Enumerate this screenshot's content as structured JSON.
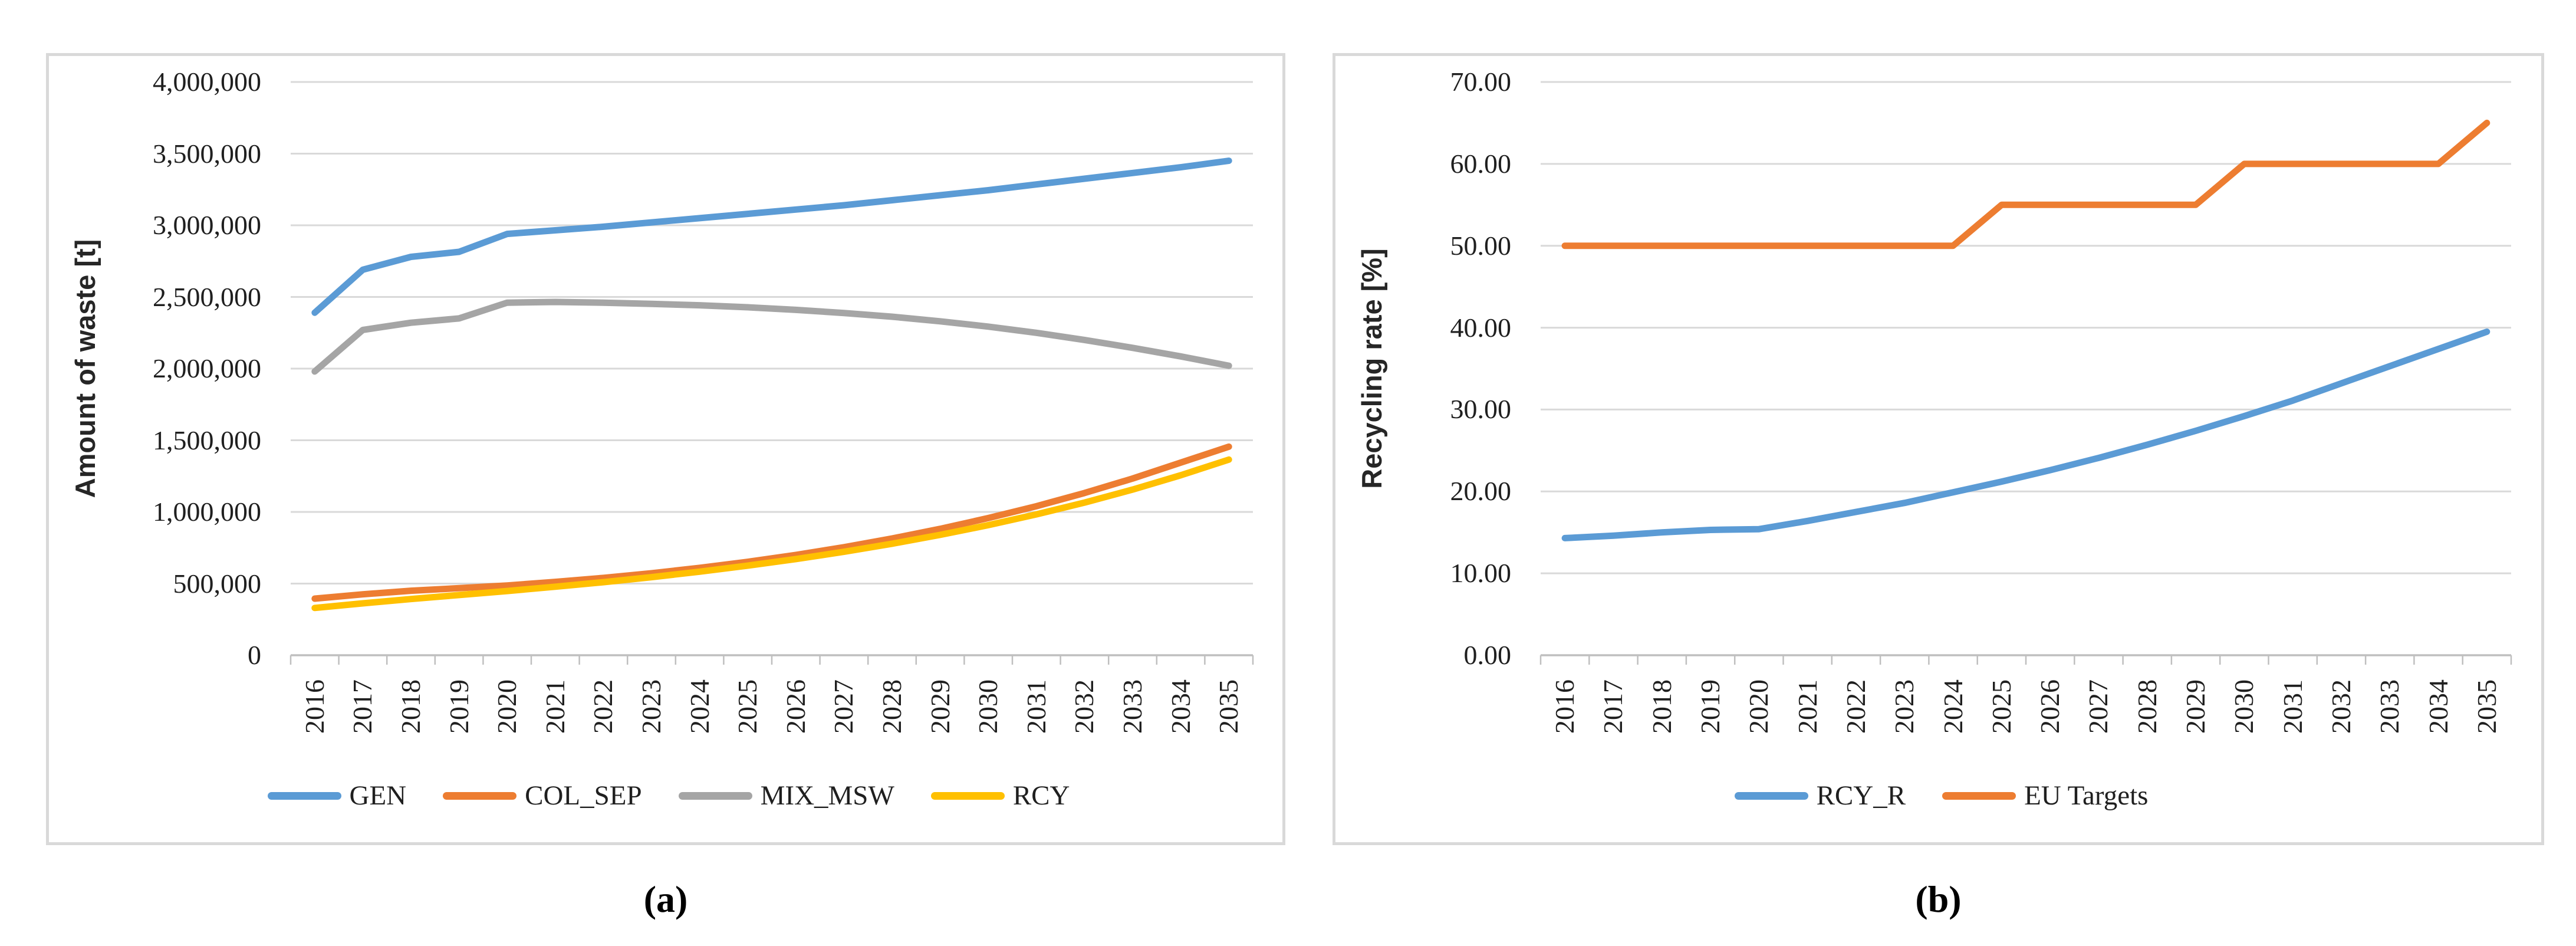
{
  "figure": {
    "captions": [
      "(a)",
      "(b)"
    ],
    "background_color": "#ffffff",
    "panel_border_color": "#d9d9d9",
    "gridline_color": "#d9d9d9",
    "axis_line_color": "#bfbfbf",
    "text_color": "#1f1f1f"
  },
  "chart_data": [
    {
      "id": "a",
      "type": "line",
      "title": "",
      "xlabel": "",
      "ylabel": "Amount of waste [t]",
      "caption": "(a)",
      "grid": true,
      "legend_position": "bottom",
      "ylim": [
        0,
        4000000
      ],
      "ytick_step": 500000,
      "ytick_labels": [
        "0",
        "500,000",
        "1,000,000",
        "1,500,000",
        "2,000,000",
        "2,500,000",
        "3,000,000",
        "3,500,000",
        "4,000,000"
      ],
      "categories": [
        "2016",
        "2017",
        "2018",
        "2019",
        "2020",
        "2021",
        "2022",
        "2023",
        "2024",
        "2025",
        "2026",
        "2027",
        "2028",
        "2029",
        "2030",
        "2031",
        "2032",
        "2033",
        "2034",
        "2035"
      ],
      "series": [
        {
          "name": "GEN",
          "color": "#5B9BD5",
          "values": [
            2390000,
            2690000,
            2780000,
            2815000,
            2940000,
            2965000,
            2990000,
            3020000,
            3050000,
            3080000,
            3110000,
            3140000,
            3175000,
            3210000,
            3245000,
            3285000,
            3325000,
            3365000,
            3405000,
            3450000
          ]
        },
        {
          "name": "COL_SEP",
          "color": "#ED7D31",
          "values": [
            395000,
            425000,
            450000,
            468000,
            487000,
            512000,
            540000,
            572000,
            610000,
            652000,
            700000,
            754000,
            815000,
            882000,
            957000,
            1040000,
            1132000,
            1233000,
            1344000,
            1455000
          ]
        },
        {
          "name": "MIX_MSW",
          "color": "#A5A5A5",
          "values": [
            1980000,
            2270000,
            2320000,
            2350000,
            2460000,
            2465000,
            2460000,
            2452000,
            2442000,
            2428000,
            2410000,
            2388000,
            2362000,
            2330000,
            2293000,
            2250000,
            2200000,
            2145000,
            2085000,
            2020000
          ]
        },
        {
          "name": "RCY",
          "color": "#FFC000",
          "values": [
            330000,
            362000,
            392000,
            420000,
            448000,
            478000,
            510000,
            545000,
            583000,
            625000,
            671000,
            722000,
            778000,
            840000,
            908000,
            983000,
            1065000,
            1156000,
            1256000,
            1365000
          ]
        }
      ]
    },
    {
      "id": "b",
      "type": "line",
      "title": "",
      "xlabel": "",
      "ylabel": "Recycling rate [%]",
      "caption": "(b)",
      "grid": true,
      "legend_position": "bottom",
      "ylim": [
        0,
        70
      ],
      "ytick_step": 10,
      "ytick_labels": [
        "0.00",
        "10.00",
        "20.00",
        "30.00",
        "40.00",
        "50.00",
        "60.00",
        "70.00"
      ],
      "categories": [
        "2016",
        "2017",
        "2018",
        "2019",
        "2020",
        "2021",
        "2022",
        "2023",
        "2024",
        "2025",
        "2026",
        "2027",
        "2028",
        "2029",
        "2030",
        "2031",
        "2032",
        "2033",
        "2034",
        "2035"
      ],
      "series": [
        {
          "name": "RCY_R",
          "color": "#5B9BD5",
          "values": [
            14.3,
            14.6,
            15.0,
            15.3,
            15.4,
            16.4,
            17.5,
            18.6,
            19.9,
            21.2,
            22.6,
            24.1,
            25.7,
            27.4,
            29.2,
            31.1,
            33.2,
            35.3,
            37.4,
            39.5
          ]
        },
        {
          "name": "EU Targets",
          "color": "#ED7D31",
          "values": [
            50,
            50,
            50,
            50,
            50,
            50,
            50,
            50,
            50,
            55,
            55,
            55,
            55,
            55,
            60,
            60,
            60,
            60,
            60,
            65
          ]
        }
      ]
    }
  ]
}
